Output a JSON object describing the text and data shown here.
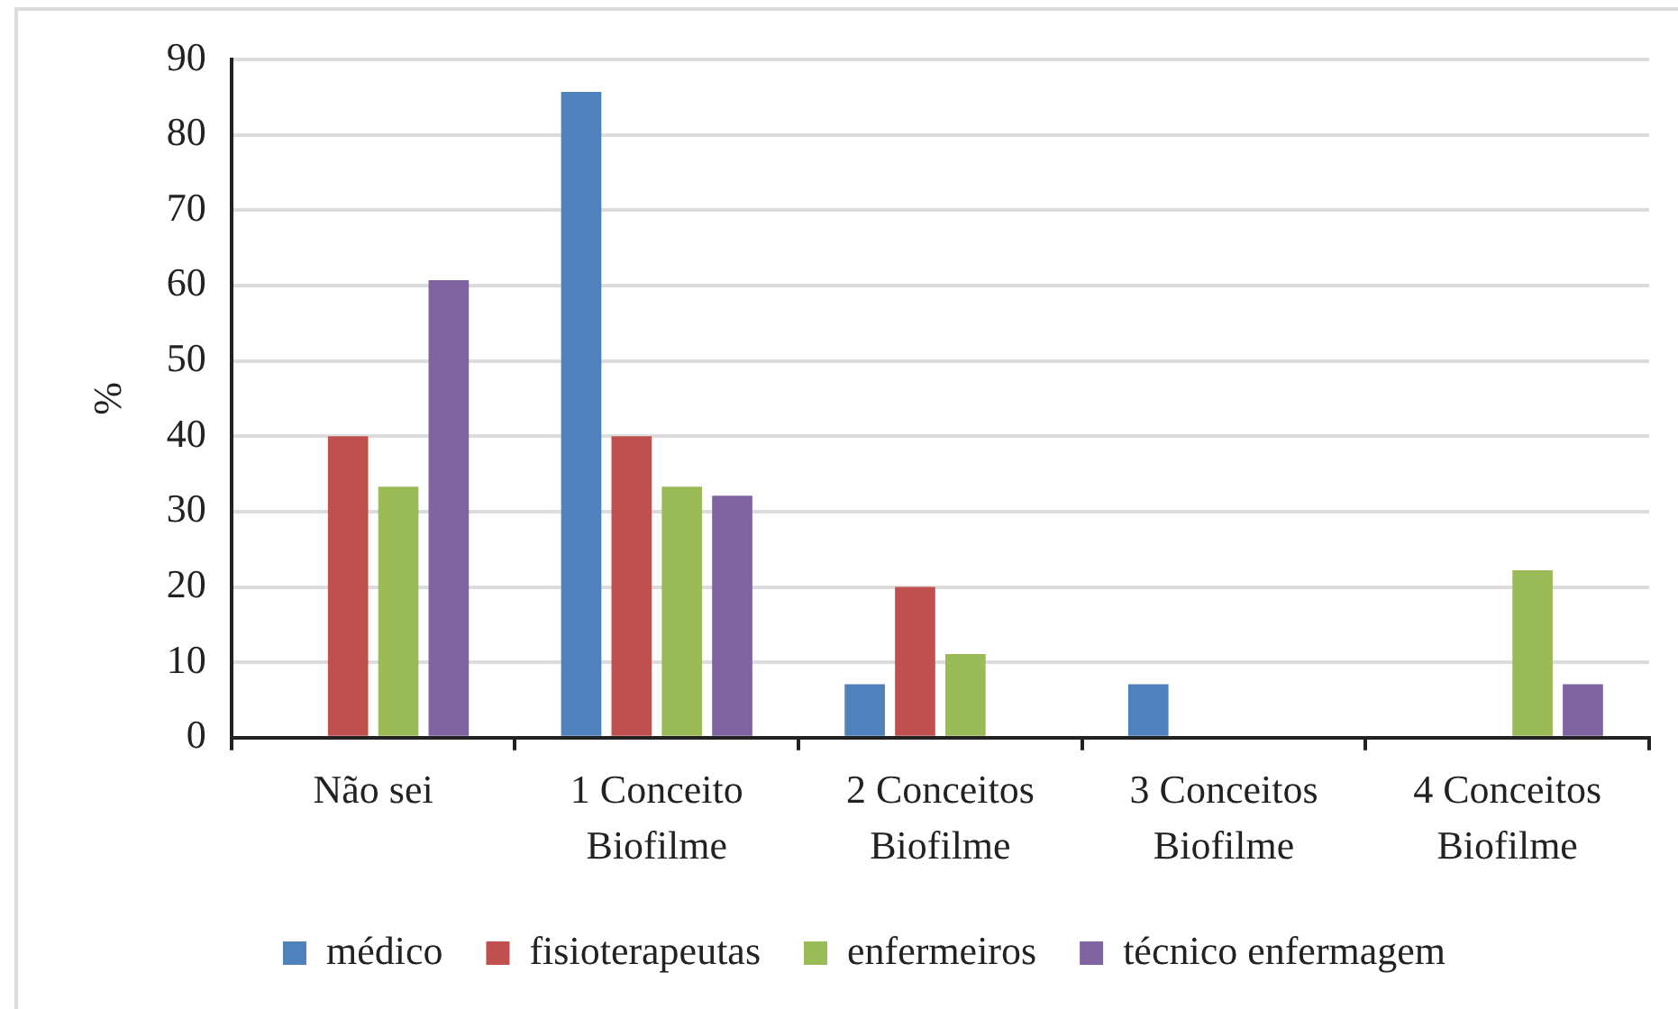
{
  "chart_data": {
    "type": "bar",
    "ylabel": "%",
    "categories": [
      "Não sei",
      "1 Conceito Biofilme",
      "2 Conceitos Biofilme",
      "3 Conceitos Biofilme",
      "4 Conceitos Biofilme"
    ],
    "series": [
      {
        "name": "médico",
        "color": "#4f81bd",
        "values": [
          0,
          85.7,
          7.1,
          7.1,
          0
        ]
      },
      {
        "name": "fisioterapeutas",
        "color": "#c0504d",
        "values": [
          40,
          40,
          20,
          0,
          0
        ]
      },
      {
        "name": "enfermeiros",
        "color": "#9bbb59",
        "values": [
          33.3,
          33.3,
          11.1,
          0,
          22.2
        ]
      },
      {
        "name": "técnico enfermagem",
        "color": "#8064a2",
        "values": [
          60.7,
          32.1,
          0,
          0,
          7.1
        ]
      }
    ],
    "ylim": [
      0,
      90
    ],
    "yticks": [
      0,
      10,
      20,
      30,
      40,
      50,
      60,
      70,
      80,
      90
    ],
    "grid": "y",
    "legend": "bottom"
  }
}
